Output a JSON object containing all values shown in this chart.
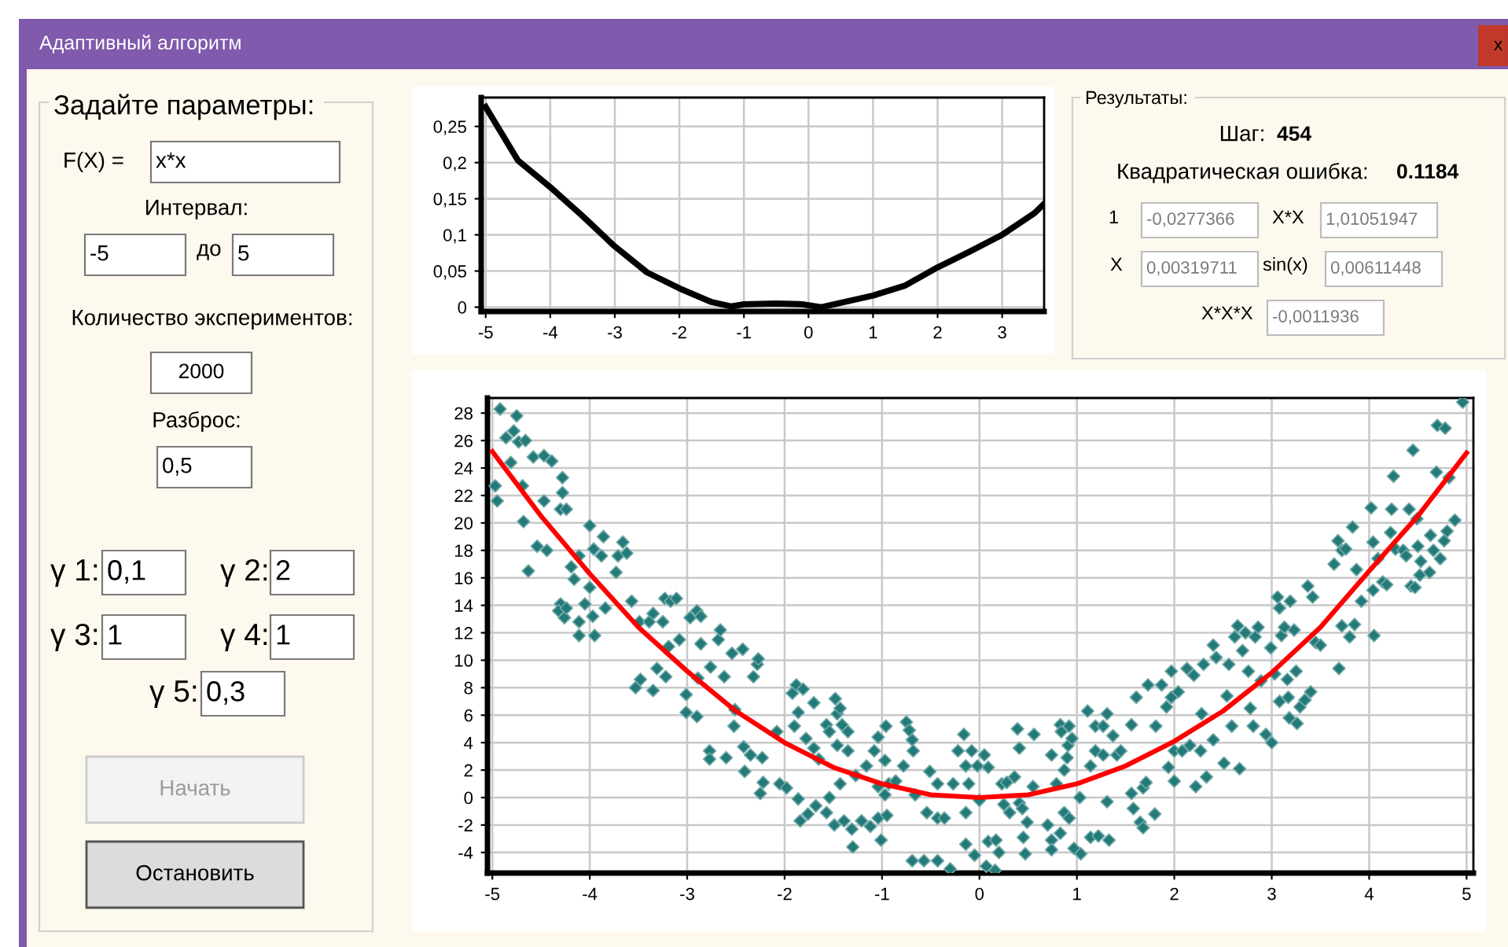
{
  "chart_data": [
    {
      "type": "other",
      "title": "Адаптивный алгоритм",
      "annotations": [
        "x"
      ]
    },
    {
      "type": "other",
      "title": "Задайте параметры:",
      "annotations": [
        "F(X) =",
        "x*x",
        "Интервал:",
        "-5",
        "до",
        "5",
        "Количество экспериментов:",
        "2000",
        "Разброс:",
        "0,5",
        "γ 1:",
        "0,1",
        "γ 2:",
        "2",
        "γ 3:",
        "1",
        "γ 4:",
        "1",
        "γ 5:",
        "0,3",
        "Начать",
        "Остановить"
      ]
    },
    {
      "type": "line",
      "x": [
        -5,
        -4.5,
        -4,
        -3.5,
        -3,
        -2.5,
        -2,
        -1.5,
        -1.2,
        -1,
        -0.5,
        -0.1,
        0.2,
        0.5,
        1,
        1.5,
        2,
        2.5,
        3,
        3.5,
        3.65
      ],
      "values": [
        0.277,
        0.203,
        0.166,
        0.126,
        0.084,
        0.048,
        0.026,
        0.007,
        0.001,
        0.004,
        0.005,
        0.004,
        0.0,
        0.006,
        0.016,
        0.03,
        0.055,
        0.077,
        0.1,
        0.13,
        0.143
      ],
      "color": "#000000",
      "xlim": [
        -5.07,
        3.65
      ],
      "ylim": [
        -0.006,
        0.29
      ],
      "xticks": [
        -5,
        -4,
        -3,
        -2,
        -1,
        0,
        1,
        2,
        3
      ],
      "yticks": [
        0,
        {
          "value": 0.05,
          "label": "0,05"
        },
        {
          "value": 0.1,
          "label": "0,1"
        },
        {
          "value": 0.15,
          "label": "0,15"
        },
        {
          "value": 0.2,
          "label": "0,2"
        },
        {
          "value": 0.25,
          "label": "0,25"
        }
      ],
      "grid": true
    },
    {
      "type": "other",
      "title": "Результаты:",
      "annotations": [
        "Шаг:",
        "454",
        "Квадратическая ошибка:",
        "0.1184",
        "1",
        "-0,0277366",
        "X*X",
        "1,01051947",
        "X",
        "0,00319711",
        "sin(x)",
        "0,00611448",
        "X*X*X",
        "-0,0011936"
      ]
    },
    {
      "type": "scatter",
      "xlim": [
        -5.05,
        5.07
      ],
      "ylim": [
        -5.5,
        29.1
      ],
      "xticks": [
        -5,
        -4,
        -3,
        -2,
        -1,
        0,
        1,
        2,
        3,
        4,
        5
      ],
      "yticks": [
        -4,
        -2,
        0,
        2,
        4,
        6,
        8,
        10,
        12,
        14,
        16,
        18,
        20,
        22,
        24,
        26,
        28
      ],
      "grid": true,
      "series": [
        {
          "type": "scatter",
          "marker": "diamond",
          "color": "#237a78",
          "x": [
            -4.92,
            -4.97,
            -4.95,
            -4.86,
            -4.78,
            -4.75,
            -4.73,
            -4.66,
            -4.81,
            -4.69,
            -4.68,
            -4.63,
            -4.58,
            -4.47,
            -4.39,
            -4.47,
            -4.54,
            -4.44,
            -4.28,
            -4.3,
            -4.24,
            -4.28,
            -4.3,
            -4.32,
            -4.26,
            -4.24,
            -4.19,
            -4.16,
            -4.11,
            -4.11,
            -4.11,
            -4.05,
            -4.0,
            -4.0,
            -3.97,
            -3.95,
            -3.96,
            -3.88,
            -3.86,
            -3.84,
            -3.73,
            -3.71,
            -3.66,
            -3.62,
            -3.57,
            -3.53,
            -3.48,
            -3.49,
            -3.39,
            -3.35,
            -3.35,
            -3.31,
            -3.25,
            -3.23,
            -3.17,
            -3.11,
            -3.22,
            -3.19,
            -3.08,
            -3.01,
            -3.01,
            -2.97,
            -2.9,
            -2.86,
            -2.86,
            -2.9,
            -2.89,
            -2.76,
            -2.77,
            -2.77,
            -2.68,
            -2.66,
            -2.62,
            -2.6,
            -2.54,
            -2.52,
            -2.51,
            -2.43,
            -2.42,
            -2.41,
            -2.35,
            -2.32,
            -2.28,
            -2.27,
            -2.25,
            -2.23,
            -2.22,
            -2.08,
            -2.05,
            -1.98,
            -1.92,
            -1.9,
            -1.88,
            -1.86,
            -1.86,
            -1.84,
            -1.81,
            -1.78,
            -1.76,
            -1.7,
            -1.7,
            -1.68,
            -1.65,
            -1.57,
            -1.57,
            -1.54,
            -1.54,
            -1.49,
            -1.48,
            -1.46,
            -1.46,
            -1.43,
            -1.41,
            -1.43,
            -1.39,
            -1.35,
            -1.35,
            -1.3,
            -1.31,
            -1.27,
            -1.21,
            -1.16,
            -1.12,
            -1.08,
            -1.04,
            -1.04,
            -1.04,
            -1.01,
            -0.97,
            -0.97,
            -0.96,
            -0.95,
            -0.93,
            -0.86,
            -0.78,
            -0.75,
            -0.72,
            -0.69,
            -0.68,
            -0.66,
            -0.69,
            -0.57,
            -0.54,
            -0.51,
            -0.43,
            -0.43,
            -0.43,
            -0.36,
            -0.3,
            -0.27,
            -0.22,
            -0.16,
            -0.14,
            -0.14,
            -0.14,
            -0.11,
            -0.08,
            -0.05,
            -0.02,
            0.0,
            0.05,
            0.09,
            0.07,
            0.09,
            0.16,
            0.17,
            0.2,
            0.23,
            0.28,
            0.25,
            0.31,
            0.36,
            0.39,
            0.41,
            0.41,
            0.44,
            0.45,
            0.47,
            0.49,
            0.55,
            0.56,
            0.7,
            0.74,
            0.74,
            0.74,
            0.79,
            0.83,
            0.83,
            0.84,
            0.87,
            0.87,
            0.9,
            0.91,
            0.92,
            0.92,
            0.95,
            0.97,
            1.03,
            1.04,
            1.11,
            1.14,
            1.14,
            1.19,
            1.19,
            1.22,
            1.27,
            1.31,
            1.27,
            1.31,
            1.33,
            1.37,
            1.41,
            1.45,
            1.56,
            1.56,
            1.58,
            1.61,
            1.65,
            1.68,
            1.68,
            1.71,
            1.73,
            1.8,
            1.81,
            1.87,
            1.92,
            1.94,
            1.97,
            1.97,
            2.0,
            2.0,
            2.04,
            2.08,
            2.13,
            2.16,
            2.2,
            2.22,
            2.27,
            2.28,
            2.3,
            2.33,
            2.4,
            2.4,
            2.43,
            2.51,
            2.54,
            2.56,
            2.59,
            2.62,
            2.65,
            2.67,
            2.7,
            2.73,
            2.76,
            2.78,
            2.81,
            2.83,
            2.86,
            2.89,
            2.94,
            3.0,
            2.99,
            3.03,
            3.06,
            3.08,
            3.08,
            3.1,
            3.13,
            3.16,
            3.17,
            3.18,
            3.19,
            3.23,
            3.25,
            3.26,
            3.29,
            3.34,
            3.37,
            3.4,
            3.42,
            3.45,
            3.5,
            3.64,
            3.68,
            3.69,
            3.72,
            3.72,
            3.76,
            3.8,
            3.83,
            3.85,
            3.87,
            3.92,
            4.02,
            4.04,
            4.04,
            4.05,
            4.09,
            4.14,
            4.18,
            4.22,
            4.23,
            4.25,
            4.27,
            4.35,
            4.38,
            4.41,
            4.43,
            4.45,
            4.47,
            4.49,
            4.5,
            4.53,
            4.52,
            4.62,
            4.63,
            4.66,
            4.69,
            4.7,
            4.73,
            4.77,
            4.78,
            4.8,
            4.82,
            4.88,
            4.96
          ],
          "values": [
            28.3,
            22.7,
            21.6,
            26.2,
            26.7,
            27.8,
            25.9,
            26.0,
            24.4,
            22.7,
            20.1,
            16.5,
            24.8,
            24.9,
            24.5,
            21.6,
            18.3,
            18.0,
            23.3,
            21.0,
            21.0,
            22.2,
            14.1,
            13.6,
            13.1,
            13.8,
            16.8,
            15.9,
            17.6,
            11.8,
            12.8,
            14.1,
            19.8,
            15.3,
            13.2,
            11.8,
            18.1,
            17.6,
            19.0,
            13.8,
            16.4,
            17.6,
            18.6,
            17.8,
            14.3,
            8.0,
            8.6,
            12.8,
            12.8,
            13.4,
            7.8,
            9.4,
            12.8,
            14.5,
            14.3,
            14.5,
            8.8,
            11.0,
            11.5,
            7.5,
            6.2,
            13.1,
            13.6,
            13.2,
            11.2,
            5.9,
            8.7,
            9.5,
            3.4,
            2.8,
            11.5,
            12.2,
            8.8,
            2.9,
            10.5,
            5.2,
            6.4,
            10.8,
            3.7,
            1.9,
            3.1,
            8.8,
            9.7,
            10.1,
            0.3,
            2.9,
            1.1,
            4.8,
            1.0,
            0.7,
            7.6,
            5.2,
            8.2,
            6.2,
            -0.1,
            -1.7,
            7.9,
            4.3,
            -1.2,
            6.9,
            3.6,
            -0.6,
            2.8,
            5.3,
            -1.1,
            4.8,
            0.0,
            -2.0,
            7.2,
            6.1,
            3.8,
            6.5,
            5.3,
            1.0,
            -1.7,
            3.4,
            4.8,
            -3.6,
            -2.3,
            1.6,
            -1.7,
            2.3,
            -2.1,
            3.4,
            4.4,
            0.8,
            -1.5,
            -3.1,
            2.7,
            0.2,
            5.2,
            -1.3,
            1.0,
            1.2,
            2.3,
            5.5,
            4.9,
            4.2,
            3.4,
            0.2,
            -4.6,
            -4.6,
            -1.1,
            1.9,
            -1.5,
            -4.6,
            1.0,
            -1.5,
            -5.2,
            1.0,
            3.4,
            4.6,
            -1.1,
            -3.4,
            2.3,
            1.0,
            3.4,
            -4.2,
            2.3,
            -0.2,
            3.1,
            2.2,
            -5.0,
            -3.2,
            -5.3,
            -3.1,
            -4.0,
            1.0,
            1.1,
            -0.5,
            -1.1,
            1.5,
            5.0,
            3.6,
            -0.4,
            -0.8,
            -2.9,
            -4.1,
            -1.8,
            0.8,
            4.6,
            -2.0,
            3.1,
            -3.1,
            -3.8,
            1.0,
            -2.6,
            5.3,
            4.8,
            2.0,
            -1.1,
            2.9,
            3.8,
            5.2,
            -1.5,
            4.3,
            -3.7,
            0.0,
            -4.1,
            6.3,
            2.3,
            -2.9,
            3.4,
            5.2,
            -2.8,
            5.2,
            6.1,
            3.1,
            -0.3,
            -3.1,
            4.5,
            3.1,
            3.4,
            5.3,
            0.3,
            -0.8,
            7.3,
            -1.8,
            0.7,
            -2.2,
            1.1,
            8.2,
            -1.2,
            5.2,
            8.2,
            6.6,
            2.2,
            7.3,
            9.2,
            1.2,
            3.4,
            7.7,
            3.4,
            9.4,
            3.8,
            8.9,
            0.8,
            3.4,
            6.1,
            9.7,
            1.5,
            11.1,
            4.2,
            10.2,
            2.5,
            7.4,
            9.7,
            5.2,
            11.7,
            12.5,
            2.1,
            10.7,
            12.0,
            9.2,
            6.5,
            5.2,
            11.7,
            12.4,
            8.5,
            4.6,
            4.0,
            10.9,
            9.0,
            14.6,
            13.8,
            7.0,
            11.8,
            12.4,
            8.6,
            7.3,
            5.8,
            14.3,
            12.2,
            9.2,
            5.4,
            6.6,
            7.1,
            15.4,
            7.7,
            14.6,
            11.3,
            11.1,
            17.0,
            18.7,
            9.4,
            18.0,
            12.5,
            18.1,
            11.7,
            19.7,
            12.6,
            16.6,
            14.3,
            21.1,
            18.6,
            15.1,
            11.8,
            17.4,
            15.7,
            15.5,
            19.3,
            21.0,
            23.4,
            18.1,
            18.0,
            17.6,
            21.0,
            15.4,
            25.3,
            15.3,
            20.3,
            18.3,
            17.2,
            16.2,
            16.4,
            19.1,
            18.0,
            23.7,
            27.1,
            17.4,
            18.7,
            26.9,
            19.4,
            23.3,
            20.2,
            28.8
          ]
        },
        {
          "type": "line",
          "color": "#ff0000",
          "x": [
            -5,
            -4.5,
            -4,
            -3.5,
            -3,
            -2.5,
            -2,
            -1.5,
            -1,
            -0.5,
            0,
            0.5,
            1,
            1.5,
            2,
            2.5,
            3,
            3.5,
            4,
            4.5,
            5
          ],
          "values": [
            25.2,
            20.5,
            16.3,
            12.4,
            9.2,
            6.3,
            4.0,
            2.2,
            1.0,
            0.2,
            0.0,
            0.2,
            1.0,
            2.3,
            4.1,
            6.3,
            9.1,
            12.4,
            16.5,
            20.5,
            25.1
          ]
        }
      ]
    }
  ]
}
